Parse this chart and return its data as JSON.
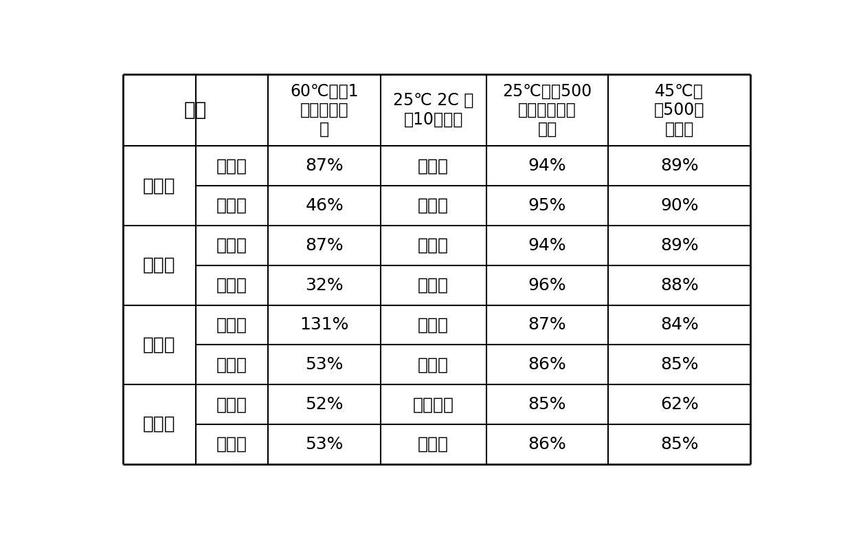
{
  "headers": [
    "实例",
    "60℃存储1\n年体积膨胀\n率",
    "25℃ 2C 循\n环10圈析锂",
    "25℃循环500\n圈放电容量保\n持率",
    "45℃循\n环500圈\n放电容"
  ],
  "rows": [
    [
      "实例一",
      "空白组",
      "87%",
      "不析锂",
      "94%",
      "89%"
    ],
    [
      "实例一",
      "实验组",
      "46%",
      "不析锂",
      "95%",
      "90%"
    ],
    [
      "实例二",
      "空白组",
      "87%",
      "不析锂",
      "94%",
      "89%"
    ],
    [
      "实例二",
      "实验组",
      "32%",
      "不析锂",
      "96%",
      "88%"
    ],
    [
      "实例三",
      "空白组",
      "131%",
      "不析锂",
      "87%",
      "84%"
    ],
    [
      "实例三",
      "实验组",
      "53%",
      "不析锂",
      "86%",
      "85%"
    ],
    [
      "实例四",
      "空白组",
      "52%",
      "严重析锂",
      "85%",
      "62%"
    ],
    [
      "实例四",
      "实验组",
      "53%",
      "不析锂",
      "86%",
      "85%"
    ]
  ],
  "groups": [
    {
      "label": "实例一",
      "rows": [
        0,
        1
      ]
    },
    {
      "label": "实例二",
      "rows": [
        2,
        3
      ]
    },
    {
      "label": "实例三",
      "rows": [
        4,
        5
      ]
    },
    {
      "label": "实例四",
      "rows": [
        6,
        7
      ]
    }
  ],
  "background_color": "#ffffff",
  "text_color": "#000000",
  "line_color": "#000000"
}
